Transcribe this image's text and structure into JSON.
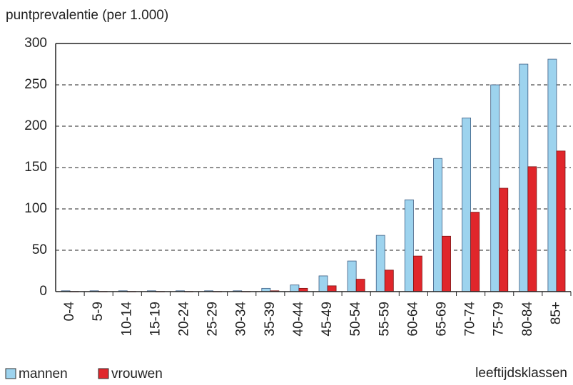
{
  "chart_data": {
    "type": "bar",
    "y_label": "puntprevalentie  (per 1.000)",
    "x_label": "leeftijdsklassen",
    "categories": [
      "0-4",
      "5-9",
      "10-14",
      "15-19",
      "20-24",
      "25-29",
      "30-34",
      "35-39",
      "40-44",
      "45-49",
      "50-54",
      "55-59",
      "60-64",
      "65-69",
      "70-74",
      "75-79",
      "80-84",
      "85+"
    ],
    "series": [
      {
        "name": "mannen",
        "color": "#9dd3ee",
        "values": [
          1,
          1,
          1,
          1,
          1,
          1,
          1,
          4,
          8,
          19,
          37,
          68,
          111,
          161,
          210,
          250,
          275,
          281
        ]
      },
      {
        "name": "vrouwen",
        "color": "#e0262b",
        "values": [
          0,
          0,
          0,
          0,
          0,
          0,
          0,
          1,
          4,
          7,
          15,
          26,
          43,
          67,
          96,
          125,
          151,
          170
        ]
      }
    ],
    "ylim": [
      0,
      300
    ],
    "yticks": [
      0,
      50,
      100,
      150,
      200,
      250,
      300
    ],
    "grid": true
  }
}
